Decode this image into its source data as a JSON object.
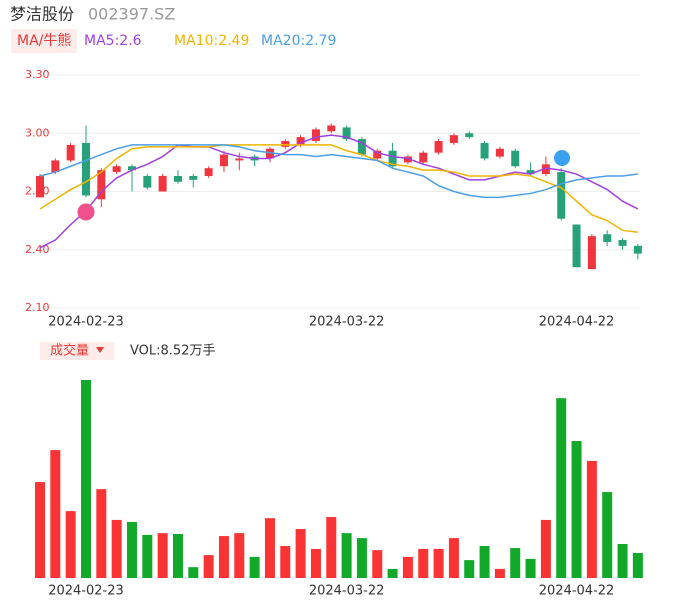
{
  "header": {
    "name": "梦洁股份",
    "code": "002397.SZ"
  },
  "chart_data": [
    {
      "type": "candlestick",
      "indicator": "MA/牛熊",
      "categories": [
        null,
        null,
        null,
        "2024-02-23",
        null,
        null,
        null,
        null,
        null,
        null,
        null,
        null,
        null,
        null,
        null,
        null,
        null,
        null,
        null,
        null,
        "2024-03-22",
        null,
        null,
        null,
        null,
        null,
        null,
        null,
        null,
        null,
        null,
        null,
        null,
        null,
        null,
        "2024-04-22",
        null,
        null,
        null,
        null
      ],
      "open": [
        2.67,
        2.8,
        2.86,
        2.95,
        2.66,
        2.8,
        2.83,
        2.78,
        2.7,
        2.78,
        2.78,
        2.78,
        2.83,
        2.86,
        2.88,
        2.87,
        2.93,
        2.94,
        2.96,
        3.01,
        3.03,
        2.97,
        2.87,
        2.91,
        2.85,
        2.85,
        2.9,
        2.95,
        3.0,
        2.95,
        2.88,
        2.91,
        2.81,
        2.79,
        2.8,
        2.53,
        2.3,
        2.48,
        2.45,
        2.42
      ],
      "high": [
        2.79,
        2.87,
        2.95,
        3.04,
        2.82,
        2.84,
        2.84,
        2.79,
        2.79,
        2.81,
        2.79,
        2.83,
        2.91,
        2.9,
        2.89,
        2.93,
        2.97,
        2.99,
        3.03,
        3.05,
        3.04,
        2.98,
        2.92,
        2.95,
        2.89,
        2.91,
        2.97,
        3.0,
        3.01,
        2.96,
        2.93,
        2.92,
        2.85,
        2.88,
        2.82,
        2.53,
        2.48,
        2.5,
        2.46,
        2.43
      ],
      "low": [
        2.67,
        2.79,
        2.85,
        2.67,
        2.62,
        2.79,
        2.7,
        2.71,
        2.7,
        2.74,
        2.72,
        2.77,
        2.8,
        2.81,
        2.83,
        2.85,
        2.92,
        2.93,
        2.95,
        3.0,
        2.96,
        2.88,
        2.86,
        2.82,
        2.84,
        2.84,
        2.89,
        2.94,
        2.97,
        2.86,
        2.87,
        2.82,
        2.78,
        2.78,
        2.55,
        2.31,
        2.3,
        2.42,
        2.4,
        2.35
      ],
      "close": [
        2.78,
        2.86,
        2.94,
        2.68,
        2.81,
        2.83,
        2.81,
        2.72,
        2.78,
        2.75,
        2.76,
        2.82,
        2.89,
        2.87,
        2.86,
        2.92,
        2.96,
        2.98,
        3.02,
        3.04,
        2.97,
        2.89,
        2.91,
        2.83,
        2.88,
        2.9,
        2.96,
        2.99,
        2.98,
        2.87,
        2.92,
        2.83,
        2.79,
        2.84,
        2.56,
        2.31,
        2.47,
        2.44,
        2.42,
        2.38
      ],
      "up_color": "#f0353f",
      "down_color": "#26a17a",
      "series": [
        {
          "name": "MA5:2.6",
          "color": "#a040e0",
          "values": [
            2.41,
            2.45,
            2.53,
            2.6,
            2.7,
            2.77,
            2.81,
            2.84,
            2.88,
            2.94,
            2.93,
            2.93,
            2.9,
            2.88,
            2.87,
            2.87,
            2.9,
            2.95,
            2.98,
            2.99,
            2.98,
            2.95,
            2.9,
            2.88,
            2.87,
            2.84,
            2.82,
            2.79,
            2.76,
            2.76,
            2.78,
            2.8,
            2.79,
            2.82,
            2.81,
            2.79,
            2.75,
            2.71,
            2.65,
            2.61
          ]
        },
        {
          "name": "MA10:2.49",
          "color": "#f0b400",
          "values": [
            2.61,
            2.66,
            2.71,
            2.75,
            2.8,
            2.87,
            2.92,
            2.93,
            2.93,
            2.93,
            2.93,
            2.93,
            2.94,
            2.94,
            2.94,
            2.94,
            2.94,
            2.94,
            2.94,
            2.94,
            2.91,
            2.89,
            2.86,
            2.84,
            2.83,
            2.81,
            2.81,
            2.8,
            2.78,
            2.78,
            2.78,
            2.79,
            2.78,
            2.75,
            2.72,
            2.65,
            2.58,
            2.55,
            2.5,
            2.49
          ]
        },
        {
          "name": "MA20:2.79",
          "color": "#4a9fe8",
          "values": [
            2.78,
            2.8,
            2.83,
            2.86,
            2.89,
            2.92,
            2.94,
            2.94,
            2.94,
            2.94,
            2.94,
            2.94,
            2.94,
            2.93,
            2.91,
            2.9,
            2.89,
            2.89,
            2.88,
            2.89,
            2.88,
            2.87,
            2.86,
            2.82,
            2.8,
            2.78,
            2.73,
            2.7,
            2.68,
            2.67,
            2.67,
            2.68,
            2.69,
            2.71,
            2.74,
            2.76,
            2.77,
            2.78,
            2.78,
            2.79
          ]
        }
      ],
      "ylim": [
        2.1,
        3.3
      ],
      "yticks": [
        {
          "value": 3.3,
          "label": "3.30"
        },
        {
          "value": 3.0,
          "label": "3.00"
        },
        {
          "value": 2.7,
          "label": "2.70"
        },
        {
          "value": 2.4,
          "label": "2.40"
        },
        {
          "value": 2.1,
          "label": "2.10"
        }
      ],
      "grid": true
    },
    {
      "type": "bar",
      "title": "成交量",
      "label": "VOL:8.52万手",
      "categories": [
        null,
        null,
        null,
        "2024-02-23",
        null,
        null,
        null,
        null,
        null,
        null,
        null,
        null,
        null,
        null,
        null,
        null,
        null,
        null,
        null,
        null,
        "2024-03-22",
        null,
        null,
        null,
        null,
        null,
        null,
        null,
        null,
        null,
        null,
        null,
        null,
        null,
        null,
        "2024-04-22",
        null,
        null,
        null,
        null
      ],
      "values": [
        32.7,
        43.6,
        22.8,
        67.5,
        30.3,
        19.8,
        19.1,
        14.7,
        15.3,
        15.0,
        3.7,
        7.8,
        14.3,
        15.3,
        7.2,
        20.4,
        10.9,
        16.7,
        9.9,
        20.8,
        15.3,
        13.6,
        9.5,
        3.1,
        7.2,
        9.9,
        9.9,
        13.6,
        6.1,
        10.9,
        3.1,
        10.2,
        6.5,
        19.8,
        61.3,
        46.7,
        39.9,
        29.3,
        11.6,
        8.52
      ],
      "up_color": "#fa3434",
      "down_color": "#12a82a"
    }
  ]
}
